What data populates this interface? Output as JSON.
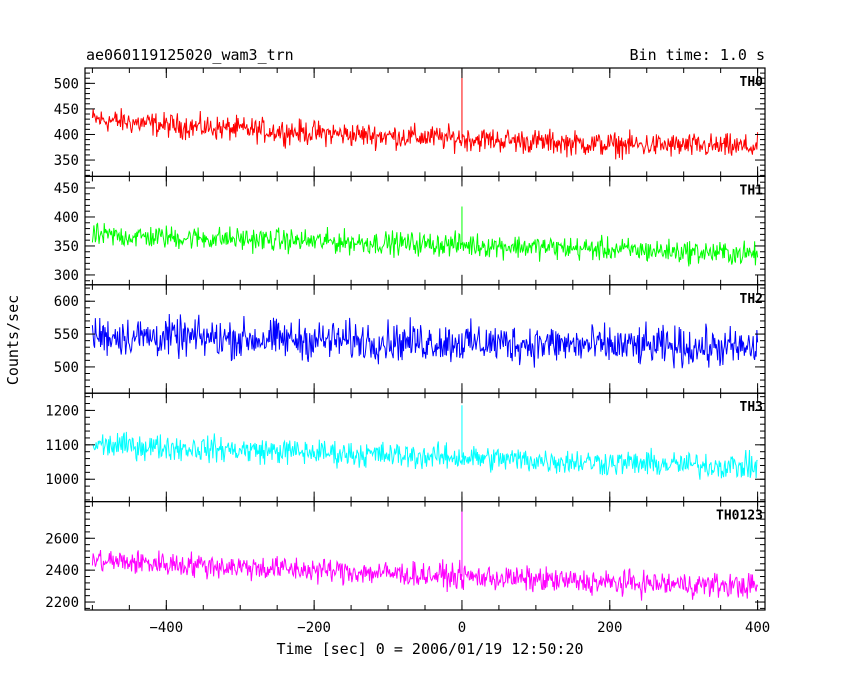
{
  "chart_data": {
    "type": "line",
    "title": "ae060119125020_wam3_trn",
    "subtitle": "Bin time: 1.0 s",
    "xlabel": "Time [sec] 0 = 2006/01/19 12:50:20",
    "ylabel": "Counts/sec",
    "xlim": [
      -510,
      410
    ],
    "xticks": [
      -400,
      -200,
      0,
      200,
      400
    ],
    "xtick_labels": [
      "−400",
      "−200",
      "0",
      "200",
      "400"
    ],
    "bin_time_s": 1.0,
    "panels": [
      {
        "name": "TH0",
        "color": "#ff0000",
        "ylim": [
          318,
          530
        ],
        "yticks": [
          350,
          400,
          450,
          500
        ],
        "x": [
          -500,
          -400,
          -300,
          -200,
          -100,
          0,
          100,
          200,
          300,
          400
        ],
        "mean": [
          430,
          418,
          410,
          403,
          397,
          392,
          386,
          380,
          378,
          375
        ],
        "spread": 32,
        "spike": {
          "x": 0,
          "y": 530
        }
      },
      {
        "name": "TH1",
        "color": "#00ff00",
        "ylim": [
          283,
          470
        ],
        "yticks": [
          300,
          350,
          400,
          450
        ],
        "x": [
          -500,
          -400,
          -300,
          -200,
          -100,
          0,
          100,
          200,
          300,
          400
        ],
        "mean": [
          368,
          365,
          362,
          358,
          355,
          352,
          348,
          344,
          340,
          336
        ],
        "spread": 27,
        "spike": {
          "x": 0,
          "y": 418
        }
      },
      {
        "name": "TH2",
        "color": "#0000ff",
        "ylim": [
          460,
          625
        ],
        "yticks": [
          500,
          550,
          600
        ],
        "x": [
          -500,
          -400,
          -300,
          -200,
          -100,
          0,
          100,
          200,
          300,
          400
        ],
        "mean": [
          548,
          545,
          543,
          541,
          539,
          537,
          535,
          532,
          530,
          528
        ],
        "spread": 40,
        "spike": null
      },
      {
        "name": "TH3",
        "color": "#00ffff",
        "ylim": [
          935,
          1250
        ],
        "yticks": [
          1000,
          1100,
          1200
        ],
        "x": [
          -500,
          -400,
          -300,
          -200,
          -100,
          0,
          100,
          200,
          300,
          400
        ],
        "mean": [
          1100,
          1093,
          1085,
          1078,
          1070,
          1063,
          1055,
          1048,
          1042,
          1036
        ],
        "spread": 50,
        "spike": {
          "x": 0,
          "y": 1215
        }
      },
      {
        "name": "TH0123",
        "color": "#ff00ff",
        "ylim": [
          2150,
          2830
        ],
        "yticks": [
          2200,
          2400,
          2600
        ],
        "x": [
          -500,
          -400,
          -300,
          -200,
          -100,
          0,
          100,
          200,
          300,
          400
        ],
        "mean": [
          2460,
          2440,
          2420,
          2400,
          2380,
          2360,
          2340,
          2320,
          2310,
          2300
        ],
        "spread": 105,
        "spike": {
          "x": 0,
          "y": 2830
        }
      }
    ]
  }
}
